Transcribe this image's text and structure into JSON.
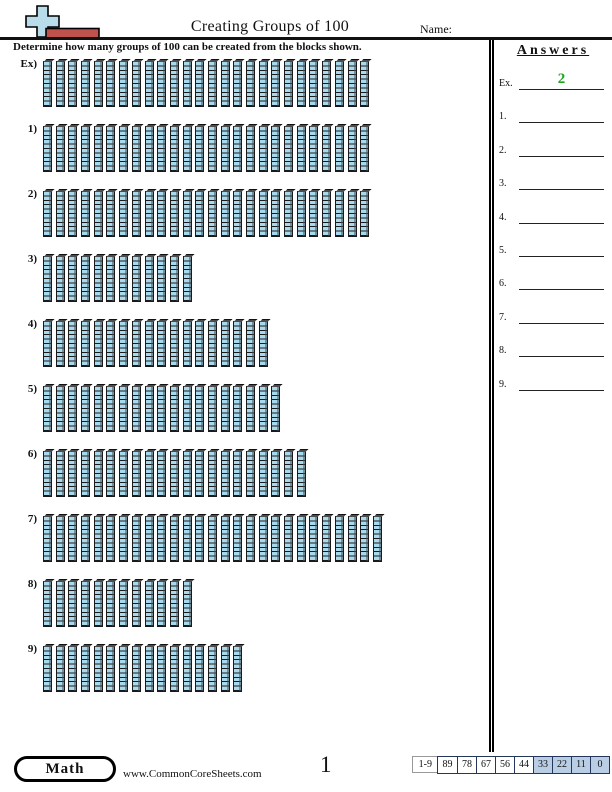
{
  "header": {
    "title": "Creating Groups of 100",
    "name_label": "Name:"
  },
  "instruction": "Determine how many groups of 100 can be created from the blocks shown.",
  "problems": [
    {
      "label": "Ex)",
      "rods": 26
    },
    {
      "label": "1)",
      "rods": 26
    },
    {
      "label": "2)",
      "rods": 26
    },
    {
      "label": "3)",
      "rods": 12
    },
    {
      "label": "4)",
      "rods": 18
    },
    {
      "label": "5)",
      "rods": 19
    },
    {
      "label": "6)",
      "rods": 21
    },
    {
      "label": "7)",
      "rods": 27
    },
    {
      "label": "8)",
      "rods": 12
    },
    {
      "label": "9)",
      "rods": 16
    }
  ],
  "answers": {
    "title": "Answers",
    "items": [
      {
        "label": "Ex.",
        "value": "2"
      },
      {
        "label": "1.",
        "value": ""
      },
      {
        "label": "2.",
        "value": ""
      },
      {
        "label": "3.",
        "value": ""
      },
      {
        "label": "4.",
        "value": ""
      },
      {
        "label": "5.",
        "value": ""
      },
      {
        "label": "6.",
        "value": ""
      },
      {
        "label": "7.",
        "value": ""
      },
      {
        "label": "8.",
        "value": ""
      },
      {
        "label": "9.",
        "value": ""
      }
    ]
  },
  "footer": {
    "subject": "Math",
    "website": "www.CommonCoreSheets.com",
    "page": "1",
    "score_label": "1-9",
    "score_values": [
      "89",
      "78",
      "67",
      "56",
      "44",
      "33",
      "22",
      "11",
      "0"
    ],
    "score_highlight_start": 5
  },
  "colors": {
    "rod_fill": "#a9d9ec",
    "answer_green": "#1ea31e",
    "score_highlight": "#b9cde5",
    "logo_blue": "#b8dcea",
    "logo_red": "#c0524e"
  }
}
